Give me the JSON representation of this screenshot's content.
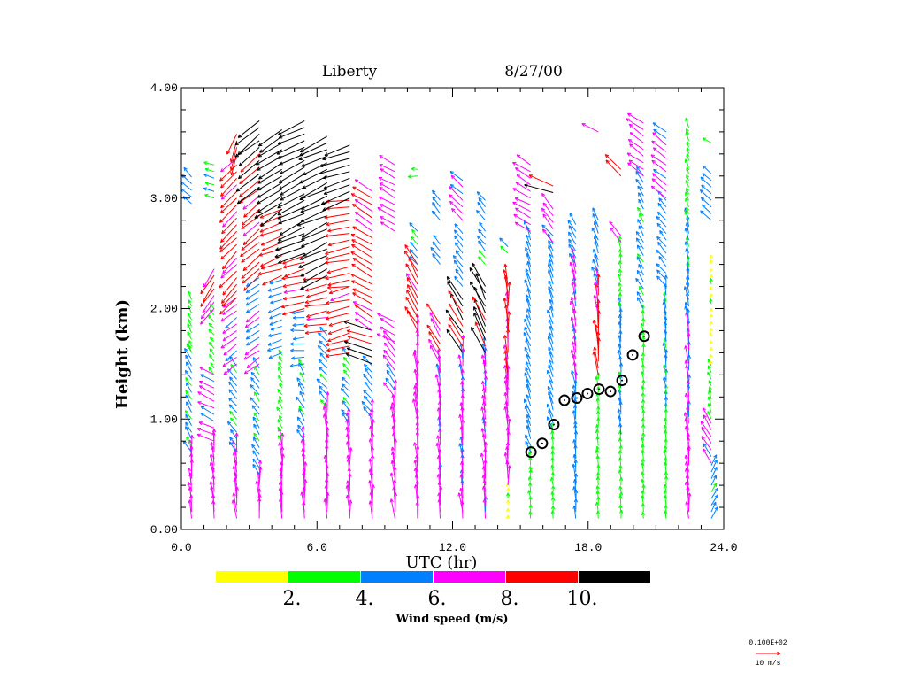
{
  "chart_data": {
    "type": "vector-field",
    "title": "Liberty",
    "date": "8/27/00",
    "xlabel": "UTC (hr)",
    "ylabel": "Height (km)",
    "xlim": [
      0,
      24
    ],
    "ylim": [
      0,
      4
    ],
    "x_ticks": [
      "0.0",
      "6.0",
      "12.0",
      "18.0",
      "24.0"
    ],
    "x_tick_values": [
      0,
      6,
      12,
      18,
      24
    ],
    "y_ticks": [
      "0.00",
      "1.00",
      "2.00",
      "3.00",
      "4.00"
    ],
    "y_tick_values": [
      0,
      1,
      2,
      3,
      4
    ],
    "colorbar": {
      "label": "Wind speed (m/s)",
      "colors": [
        "#ffff00",
        "#00ff00",
        "#0080ff",
        "#ff00ff",
        "#ff0000",
        "#000000"
      ],
      "tick_labels": [
        "2.",
        "4.",
        "6.",
        "8.",
        "10."
      ],
      "bounds": [
        0,
        2,
        4,
        6,
        8,
        10,
        12
      ]
    },
    "reference_vector": {
      "scale_label": "0.100E+02",
      "label": "10 m/s",
      "speed": 10,
      "color": "#ff0000"
    },
    "vertical_spacing_km": 0.06,
    "columns_note": "each segment: [from_km, to_km, speed_m_s, arrow_direction_deg (0=east, 90=north)]",
    "columns": [
      {
        "hour": 0.45,
        "segments": [
          [
            0.1,
            0.7,
            7,
            95
          ],
          [
            0.7,
            1.6,
            4.5,
            120
          ],
          [
            1.6,
            2.1,
            3,
            115
          ],
          [
            2.95,
            3.2,
            4.5,
            135
          ]
        ]
      },
      {
        "hour": 1.45,
        "segments": [
          [
            0.1,
            0.8,
            7,
            95
          ],
          [
            0.8,
            1.4,
            6.5,
            155
          ],
          [
            1.4,
            2.0,
            3,
            130
          ],
          [
            2.0,
            2.4,
            8.5,
            235
          ],
          [
            3.0,
            3.35,
            3.5,
            160
          ]
        ]
      },
      {
        "hour": 2.45,
        "segments": [
          [
            0.1,
            0.7,
            7,
            95
          ],
          [
            0.7,
            1.5,
            4.5,
            130
          ],
          [
            1.5,
            2.1,
            6.5,
            220
          ],
          [
            2.1,
            3.4,
            8.5,
            225
          ],
          [
            3.4,
            3.6,
            8.5,
            250
          ]
        ]
      },
      {
        "hour": 3.45,
        "segments": [
          [
            0.1,
            0.5,
            7,
            92
          ],
          [
            0.5,
            1.5,
            4.5,
            125
          ],
          [
            1.5,
            2.3,
            6.5,
            215
          ],
          [
            2.3,
            3.1,
            8.5,
            220
          ],
          [
            3.1,
            3.7,
            10.5,
            220
          ]
        ]
      },
      {
        "hour": 4.45,
        "segments": [
          [
            0.1,
            0.8,
            7,
            92
          ],
          [
            0.8,
            1.6,
            3,
            120
          ],
          [
            1.6,
            2.3,
            5,
            200
          ],
          [
            2.3,
            2.9,
            8.5,
            200
          ],
          [
            2.9,
            3.65,
            11,
            215
          ]
        ]
      },
      {
        "hour": 5.45,
        "segments": [
          [
            0.1,
            0.8,
            7,
            92
          ],
          [
            0.8,
            1.5,
            4.5,
            120
          ],
          [
            1.5,
            2.0,
            5,
            185
          ],
          [
            2.0,
            2.5,
            8.5,
            195
          ],
          [
            2.5,
            3.7,
            11,
            205
          ]
        ]
      },
      {
        "hour": 6.45,
        "segments": [
          [
            0.1,
            1.1,
            7,
            93
          ],
          [
            1.1,
            1.8,
            4.5,
            135
          ],
          [
            1.8,
            2.3,
            8.5,
            190
          ],
          [
            2.3,
            3.6,
            11,
            205
          ]
        ]
      },
      {
        "hour": 7.45,
        "segments": [
          [
            0.1,
            0.95,
            7,
            93
          ],
          [
            0.95,
            1.6,
            4.5,
            130
          ],
          [
            1.6,
            2.2,
            8.5,
            195
          ],
          [
            2.2,
            3.0,
            9,
            190
          ],
          [
            3.0,
            3.5,
            11,
            200
          ]
        ]
      },
      {
        "hour": 8.45,
        "segments": [
          [
            0.1,
            1.0,
            7,
            93
          ],
          [
            1.0,
            1.5,
            5,
            130
          ],
          [
            1.5,
            1.8,
            10.5,
            165
          ],
          [
            1.8,
            3.1,
            8.5,
            150
          ]
        ]
      },
      {
        "hour": 9.45,
        "segments": [
          [
            0.1,
            1.2,
            7,
            95
          ],
          [
            1.2,
            1.7,
            6.5,
            125
          ],
          [
            1.7,
            1.9,
            7,
            150
          ],
          [
            2.7,
            3.3,
            7,
            150
          ]
        ]
      },
      {
        "hour": 10.45,
        "segments": [
          [
            0.1,
            1.8,
            7,
            95
          ],
          [
            1.8,
            2.4,
            8.5,
            120
          ],
          [
            2.4,
            2.7,
            4.5,
            130
          ],
          [
            3.2,
            3.3,
            3,
            180
          ]
        ]
      },
      {
        "hour": 11.45,
        "segments": [
          [
            0.1,
            1.5,
            6.5,
            95
          ],
          [
            1.5,
            1.9,
            8.5,
            120
          ],
          [
            2.4,
            2.6,
            4.5,
            130
          ],
          [
            2.8,
            3.0,
            5,
            130
          ]
        ]
      },
      {
        "hour": 12.45,
        "segments": [
          [
            0.1,
            1.6,
            6.5,
            95
          ],
          [
            1.6,
            2.1,
            10.5,
            120
          ],
          [
            2.2,
            2.7,
            5,
            130
          ],
          [
            2.8,
            3.2,
            6.5,
            140
          ]
        ]
      },
      {
        "hour": 13.45,
        "segments": [
          [
            0.1,
            1.6,
            6.5,
            95
          ],
          [
            1.6,
            2.2,
            10.5,
            115
          ],
          [
            2.4,
            2.7,
            4.5,
            130
          ],
          [
            2.8,
            3.0,
            4.5,
            130
          ]
        ]
      },
      {
        "hour": 14.45,
        "segments": [
          [
            0.1,
            0.4,
            1.5,
            90
          ],
          [
            0.4,
            1.3,
            7,
            92
          ],
          [
            1.3,
            2.2,
            8.5,
            93
          ],
          [
            2.5,
            2.6,
            4.5,
            130
          ]
        ]
      },
      {
        "hour": 15.45,
        "segments": [
          [
            0.1,
            0.7,
            3,
            95
          ],
          [
            0.7,
            2.7,
            5,
            110
          ],
          [
            2.7,
            3.3,
            7,
            150
          ]
        ]
      },
      {
        "hour": 16.45,
        "segments": [
          [
            0.1,
            0.9,
            3,
            95
          ],
          [
            0.9,
            2.6,
            5,
            110
          ],
          [
            2.6,
            2.9,
            6.5,
            130
          ],
          [
            3.05,
            3.15,
            10.5,
            160
          ]
        ]
      },
      {
        "hour": 17.45,
        "segments": [
          [
            0.1,
            1.3,
            5,
            95
          ],
          [
            1.3,
            2.4,
            6.5,
            100
          ],
          [
            2.4,
            2.8,
            5,
            120
          ]
        ]
      },
      {
        "hour": 18.45,
        "segments": [
          [
            0.1,
            1.4,
            3,
            95
          ],
          [
            1.4,
            2.2,
            8.5,
            95
          ],
          [
            2.2,
            2.8,
            5,
            110
          ],
          [
            3.6,
            3.65,
            6.5,
            150
          ]
        ]
      },
      {
        "hour": 19.45,
        "segments": [
          [
            0.1,
            0.8,
            3,
            93
          ],
          [
            0.8,
            2.0,
            4.5,
            95
          ],
          [
            2.0,
            2.6,
            3,
            100
          ],
          [
            2.6,
            2.7,
            6.5,
            130
          ],
          [
            3.2,
            3.3,
            8.5,
            135
          ]
        ]
      },
      {
        "hour": 20.45,
        "segments": [
          [
            0.1,
            2.0,
            3,
            95
          ],
          [
            2.0,
            3.2,
            4.5,
            120
          ],
          [
            3.2,
            3.7,
            7,
            145
          ]
        ]
      },
      {
        "hour": 21.45,
        "segments": [
          [
            0.1,
            1.1,
            3,
            95
          ],
          [
            1.1,
            2.2,
            4.5,
            95
          ],
          [
            2.2,
            3.0,
            5,
            130
          ],
          [
            3.0,
            3.65,
            6.5,
            140
          ]
        ]
      },
      {
        "hour": 22.45,
        "segments": [
          [
            0.1,
            0.6,
            7,
            93
          ],
          [
            0.6,
            1.9,
            6.5,
            95
          ],
          [
            1.9,
            2.8,
            4.5,
            100
          ],
          [
            2.8,
            3.65,
            3,
            110
          ]
        ]
      },
      {
        "hour": 23.45,
        "segments": [
          [
            0.1,
            0.6,
            4.5,
            60
          ],
          [
            0.6,
            1.0,
            6.5,
            120
          ],
          [
            1.0,
            1.5,
            3,
            110
          ],
          [
            1.5,
            2.5,
            1.5,
            100
          ],
          [
            2.8,
            3.25,
            5,
            140
          ],
          [
            3.5,
            3.55,
            4.5,
            150
          ]
        ]
      }
    ],
    "mixing_height_points": {
      "hours": [
        15.47,
        15.97,
        16.48,
        16.95,
        17.5,
        17.97,
        18.48,
        18.99,
        19.5,
        19.97,
        20.48
      ],
      "heights_km": [
        0.7,
        0.78,
        0.95,
        1.17,
        1.19,
        1.23,
        1.27,
        1.25,
        1.35,
        1.58,
        1.75
      ]
    }
  }
}
